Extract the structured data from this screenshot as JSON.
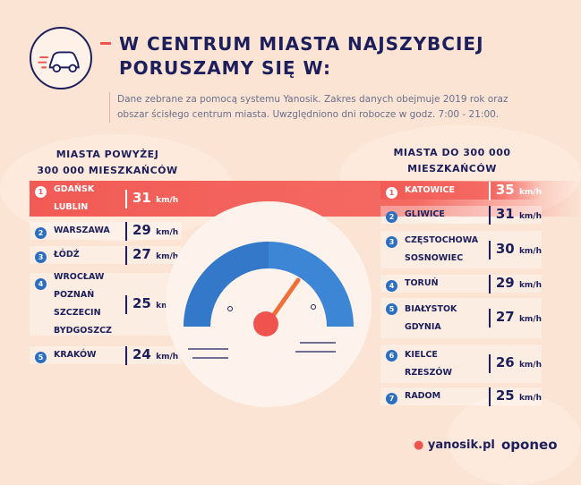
{
  "title": {
    "line1": "W CENTRUM MIASTA NAJSZYBCIEJ",
    "line2": "PORUSZAMY SIĘ W:"
  },
  "description": {
    "line1": "Dane zebrane za pomocą systemu Yanosik. Zakres danych obejmuje 2019 rok oraz",
    "line2": "obszar ścisłego centrum miasta. Uwzględniono dni robocze w godz. 7:00 - 21:00."
  },
  "left": {
    "header_line1": "MIASTA POWYŻEJ",
    "header_line2": "300 000 MIESZKAŃCÓW",
    "rows": [
      {
        "rank": "1",
        "cities": [
          "GDAŃSK",
          "LUBLIN"
        ],
        "speed": "31",
        "unit": "km/h"
      },
      {
        "rank": "2",
        "cities": [
          "WARSZAWA"
        ],
        "speed": "29",
        "unit": "km/h"
      },
      {
        "rank": "3",
        "cities": [
          "ŁÓDŹ"
        ],
        "speed": "27",
        "unit": "km/h"
      },
      {
        "rank": "4",
        "cities": [
          "WROCŁAW",
          "POZNAŃ",
          "SZCZECIN",
          "BYDGOSZCZ"
        ],
        "speed": "25",
        "unit": "km/h"
      },
      {
        "rank": "5",
        "cities": [
          "KRAKÓW"
        ],
        "speed": "24",
        "unit": "km/h"
      }
    ]
  },
  "right": {
    "header_line1": "MIASTA DO 300 000",
    "header_line2": "MIESZKAŃCÓW",
    "rows": [
      {
        "rank": "1",
        "cities": [
          "KATOWICE"
        ],
        "speed": "35",
        "unit": "km/h"
      },
      {
        "rank": "2",
        "cities": [
          "GLIWICE"
        ],
        "speed": "31",
        "unit": "km/h"
      },
      {
        "rank": "3",
        "cities": [
          "CZĘSTOCHOWA",
          "SOSNOWIEC"
        ],
        "speed": "30",
        "unit": "km/h"
      },
      {
        "rank": "4",
        "cities": [
          "TORUŃ"
        ],
        "speed": "29",
        "unit": "km/h"
      },
      {
        "rank": "5",
        "cities": [
          "BIAŁYSTOK",
          "GDYNIA"
        ],
        "speed": "27",
        "unit": "km/h"
      },
      {
        "rank": "6",
        "cities": [
          "KIELCE",
          "RZESZÓW"
        ],
        "speed": "26",
        "unit": "km/h"
      },
      {
        "rank": "7",
        "cities": [
          "RADOM"
        ],
        "speed": "25",
        "unit": "km/h"
      }
    ]
  },
  "logos": {
    "yanosik": "yanosik.pl",
    "oponeo": "oponeo"
  },
  "colors": {
    "highlight": "#f25a55",
    "navy": "#1c1f5c",
    "badge": "#2b6fc2",
    "background": "#fbe4d4"
  }
}
